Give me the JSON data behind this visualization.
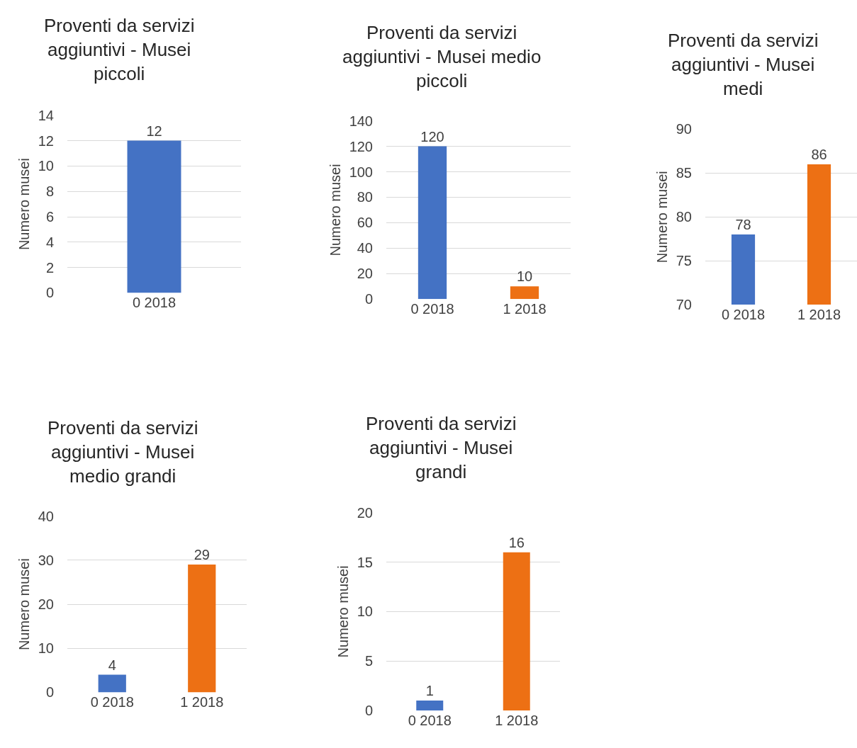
{
  "chart_data": [
    {
      "type": "bar",
      "title": "Proventi da servizi aggiuntivi - Musei piccoli",
      "ylabel": "Numero musei",
      "categories": [
        "0 2018"
      ],
      "values": [
        12
      ],
      "colors": [
        "#4472c4"
      ],
      "ylim": [
        0,
        14
      ],
      "yticks": [
        0,
        2,
        4,
        6,
        8,
        10,
        12,
        14
      ],
      "grid": "y",
      "data_labels": true
    },
    {
      "type": "bar",
      "title": "Proventi da servizi aggiuntivi - Musei medio piccoli",
      "ylabel": "Numero musei",
      "categories": [
        "0 2018",
        "1 2018"
      ],
      "values": [
        120,
        10
      ],
      "colors": [
        "#4472c4",
        "#ed7014"
      ],
      "ylim": [
        0,
        140
      ],
      "yticks": [
        0,
        20,
        40,
        60,
        80,
        100,
        120,
        140
      ],
      "grid": "y",
      "data_labels": true
    },
    {
      "type": "bar",
      "title": "Proventi da servizi aggiuntivi - Musei medi",
      "ylabel": "Numero musei",
      "categories": [
        "0 2018",
        "1 2018"
      ],
      "values": [
        78,
        86
      ],
      "colors": [
        "#4472c4",
        "#ed7014"
      ],
      "ylim": [
        70,
        90
      ],
      "yticks": [
        70,
        75,
        80,
        85,
        90
      ],
      "grid": "y",
      "data_labels": true
    },
    {
      "type": "bar",
      "title": "Proventi da servizi aggiuntivi - Musei medio grandi",
      "ylabel": "Numero musei",
      "categories": [
        "0 2018",
        "1 2018"
      ],
      "values": [
        4,
        29
      ],
      "colors": [
        "#4472c4",
        "#ed7014"
      ],
      "ylim": [
        0,
        40
      ],
      "yticks": [
        0,
        10,
        20,
        30,
        40
      ],
      "grid": "y",
      "data_labels": true
    },
    {
      "type": "bar",
      "title": "Proventi da servizi aggiuntivi - Musei grandi",
      "ylabel": "Numero musei",
      "categories": [
        "0 2018",
        "1 2018"
      ],
      "values": [
        1,
        16
      ],
      "colors": [
        "#4472c4",
        "#ed7014"
      ],
      "ylim": [
        0,
        20
      ],
      "yticks": [
        0,
        5,
        10,
        15,
        20
      ],
      "grid": "y",
      "data_labels": true
    }
  ]
}
